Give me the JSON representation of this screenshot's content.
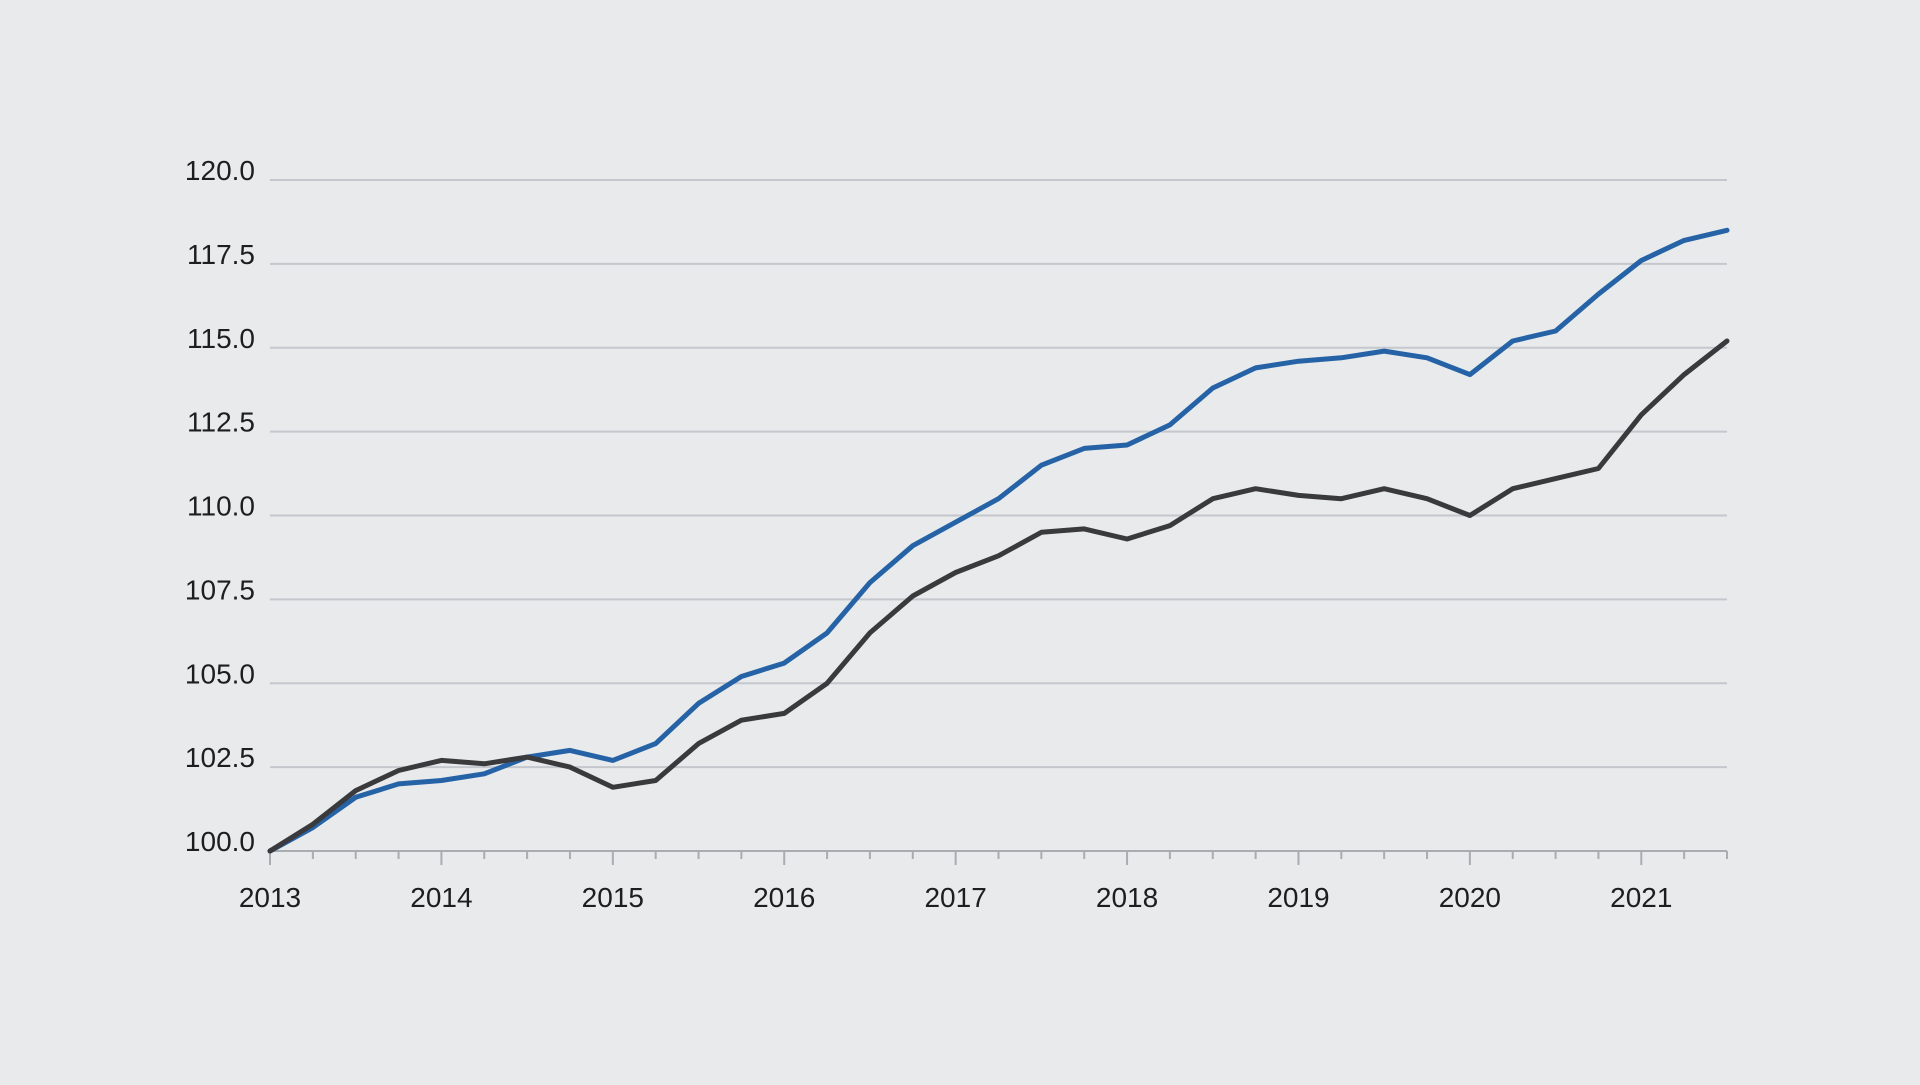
{
  "chart_data": {
    "type": "line",
    "title": "",
    "xlabel": "",
    "ylabel": "",
    "ylim": [
      100,
      120
    ],
    "yticks": [
      "100.0",
      "102.5",
      "105.0",
      "107.5",
      "110.0",
      "112.5",
      "115.0",
      "117.5",
      "120.0"
    ],
    "ytick_values": [
      100,
      102.5,
      105,
      107.5,
      110,
      112.5,
      115,
      117.5,
      120
    ],
    "x_start": 2013.0,
    "x_end": 2021.5,
    "xticks": [
      "2013",
      "2014",
      "2015",
      "2016",
      "2017",
      "2018",
      "2019",
      "2020",
      "2021"
    ],
    "xtick_values": [
      2013,
      2014,
      2015,
      2016,
      2017,
      2018,
      2019,
      2020,
      2021
    ],
    "grid": true,
    "legend": "none",
    "x": [
      2013.0,
      2013.25,
      2013.5,
      2013.75,
      2014.0,
      2014.25,
      2014.5,
      2014.75,
      2015.0,
      2015.25,
      2015.5,
      2015.75,
      2016.0,
      2016.25,
      2016.5,
      2016.75,
      2017.0,
      2017.25,
      2017.5,
      2017.75,
      2018.0,
      2018.25,
      2018.5,
      2018.75,
      2019.0,
      2019.25,
      2019.5,
      2019.75,
      2020.0,
      2020.25,
      2020.5,
      2020.75,
      2021.0,
      2021.25,
      2021.5
    ],
    "series": [
      {
        "name": "blue series",
        "color": "#2563a6",
        "values": [
          100.0,
          100.7,
          101.6,
          102.0,
          102.1,
          102.3,
          102.8,
          103.0,
          102.7,
          103.2,
          104.4,
          105.2,
          105.6,
          106.5,
          108.0,
          109.1,
          109.8,
          110.5,
          111.5,
          112.0,
          112.1,
          112.7,
          113.8,
          114.4,
          114.6,
          114.7,
          114.9,
          114.7,
          114.2,
          115.2,
          115.5,
          116.6,
          117.6,
          118.2,
          118.5
        ]
      },
      {
        "name": "dark series",
        "color": "#3a3a3c",
        "values": [
          100.0,
          100.8,
          101.8,
          102.4,
          102.7,
          102.6,
          102.8,
          102.5,
          101.9,
          102.1,
          103.2,
          103.9,
          104.1,
          105.0,
          106.5,
          107.6,
          108.3,
          108.8,
          109.5,
          109.6,
          109.3,
          109.7,
          110.5,
          110.8,
          110.6,
          110.5,
          110.8,
          110.5,
          110.0,
          110.8,
          111.1,
          111.4,
          113.0,
          114.2,
          115.2
        ]
      }
    ]
  }
}
